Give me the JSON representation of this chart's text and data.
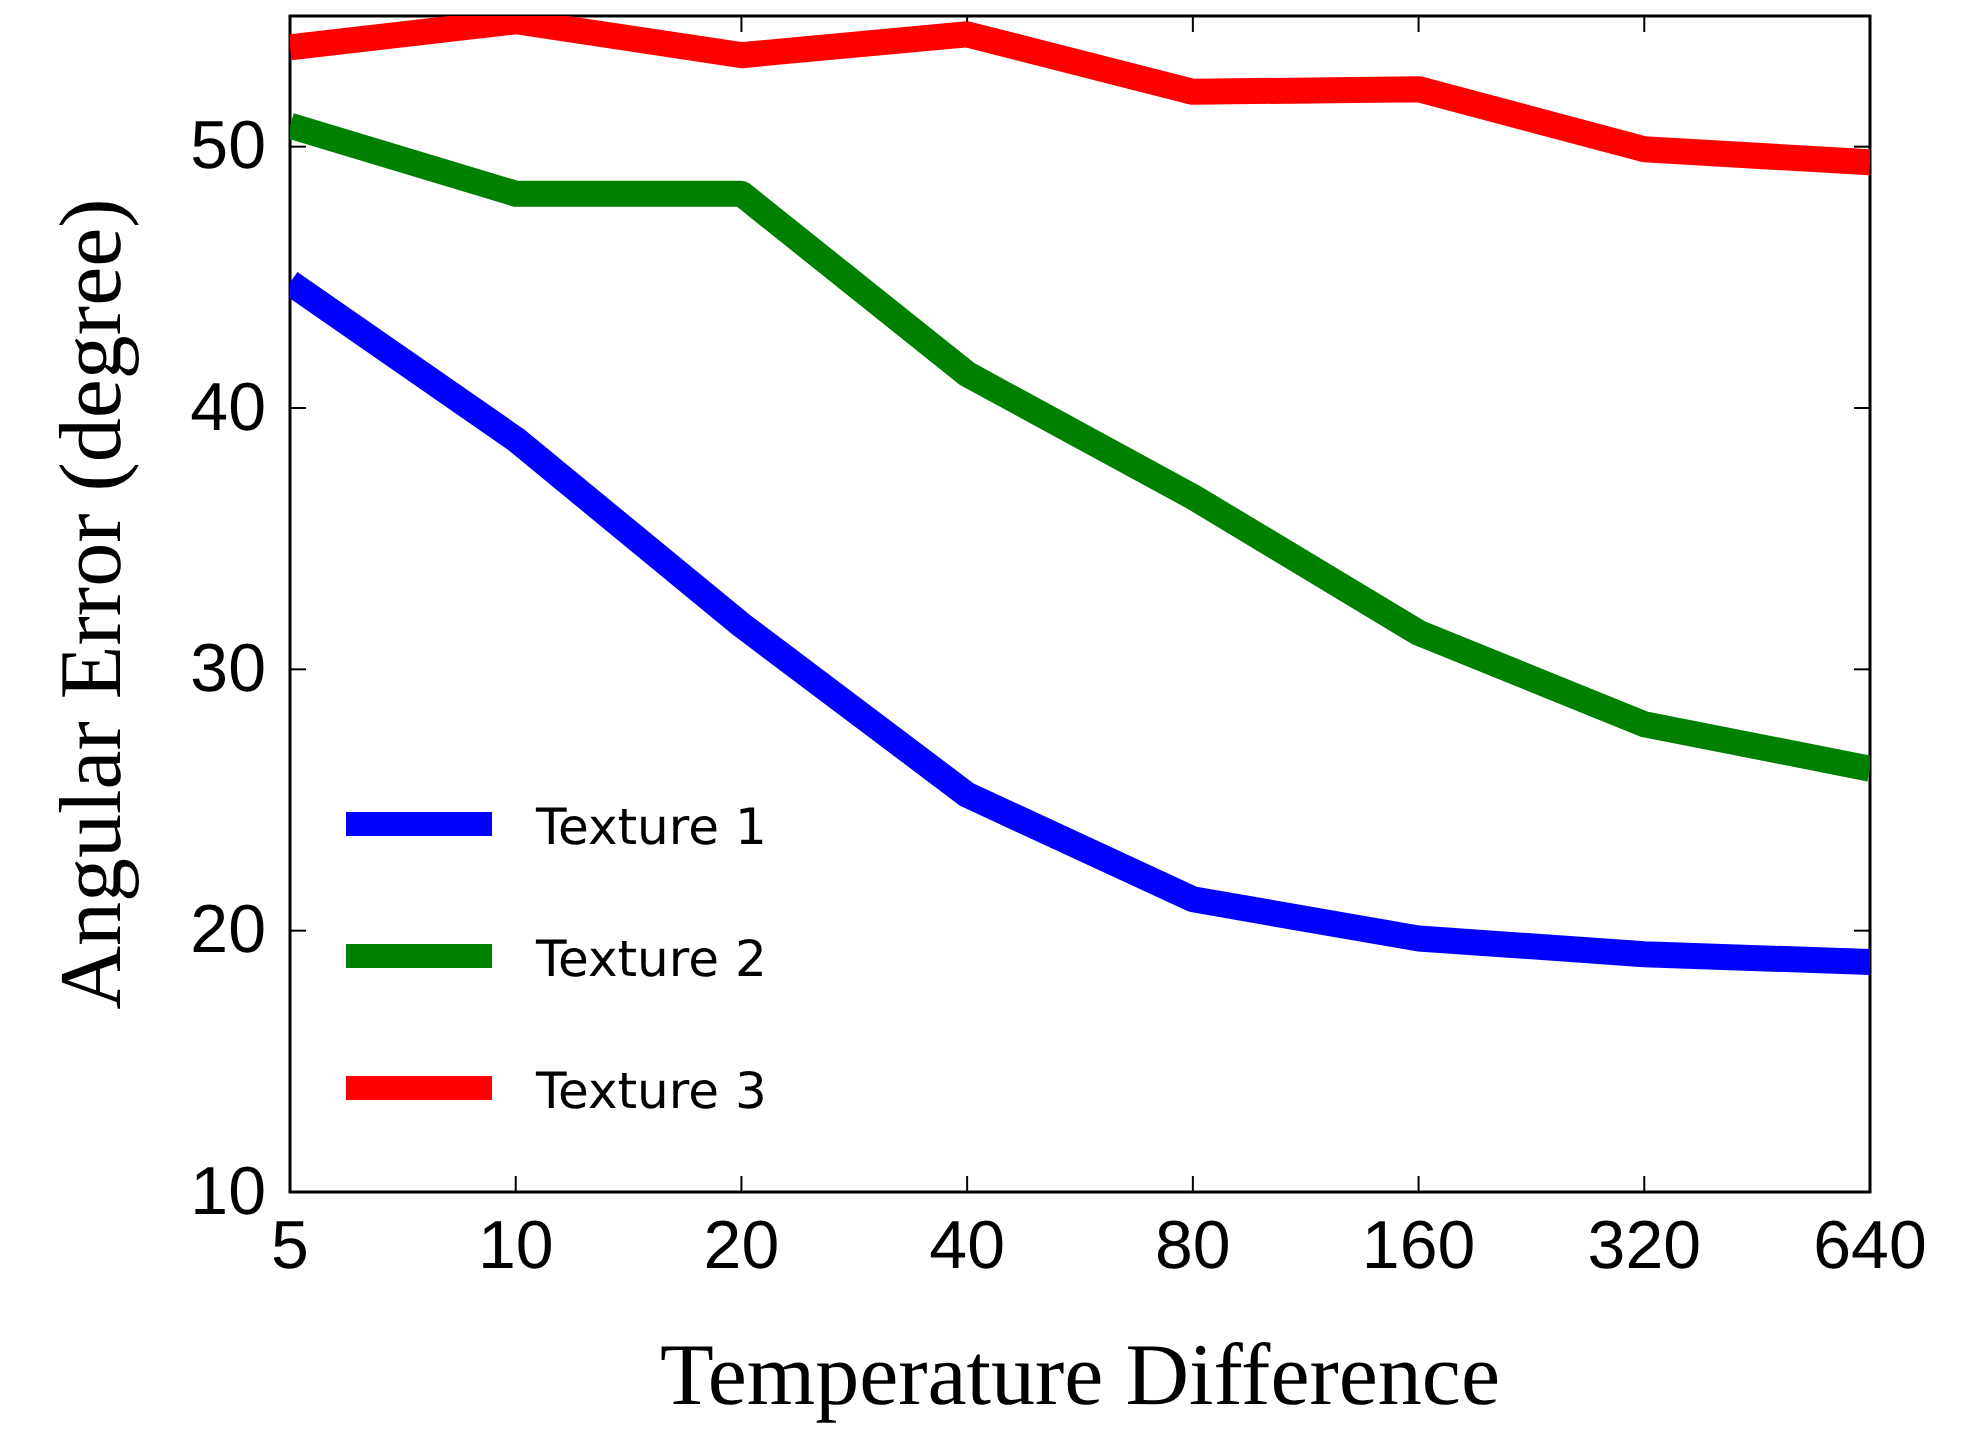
{
  "chart_data": {
    "type": "line",
    "xlabel": "Temperature Difference",
    "ylabel": "Angular Error (degree)",
    "categories": [
      "5",
      "10",
      "20",
      "40",
      "80",
      "160",
      "320",
      "640"
    ],
    "ylim": [
      10,
      55
    ],
    "yticks": [
      10,
      20,
      30,
      40,
      50
    ],
    "legend": "bottom left",
    "grid": false,
    "line_style": "solid",
    "marker": "none",
    "series": [
      {
        "name": "Texture 1",
        "color": "#0000ff",
        "values": [
          44.8,
          38.8,
          31.7,
          25.2,
          21.2,
          19.7,
          19.1,
          18.8
        ]
      },
      {
        "name": "Texture 2",
        "color": "#008000",
        "values": [
          50.8,
          48.2,
          48.2,
          41.3,
          36.6,
          31.4,
          27.9,
          26.2
        ]
      },
      {
        "name": "Texture 3",
        "color": "#ff0000",
        "values": [
          53.8,
          54.8,
          53.5,
          54.3,
          52.1,
          52.2,
          49.9,
          49.4
        ]
      }
    ]
  }
}
